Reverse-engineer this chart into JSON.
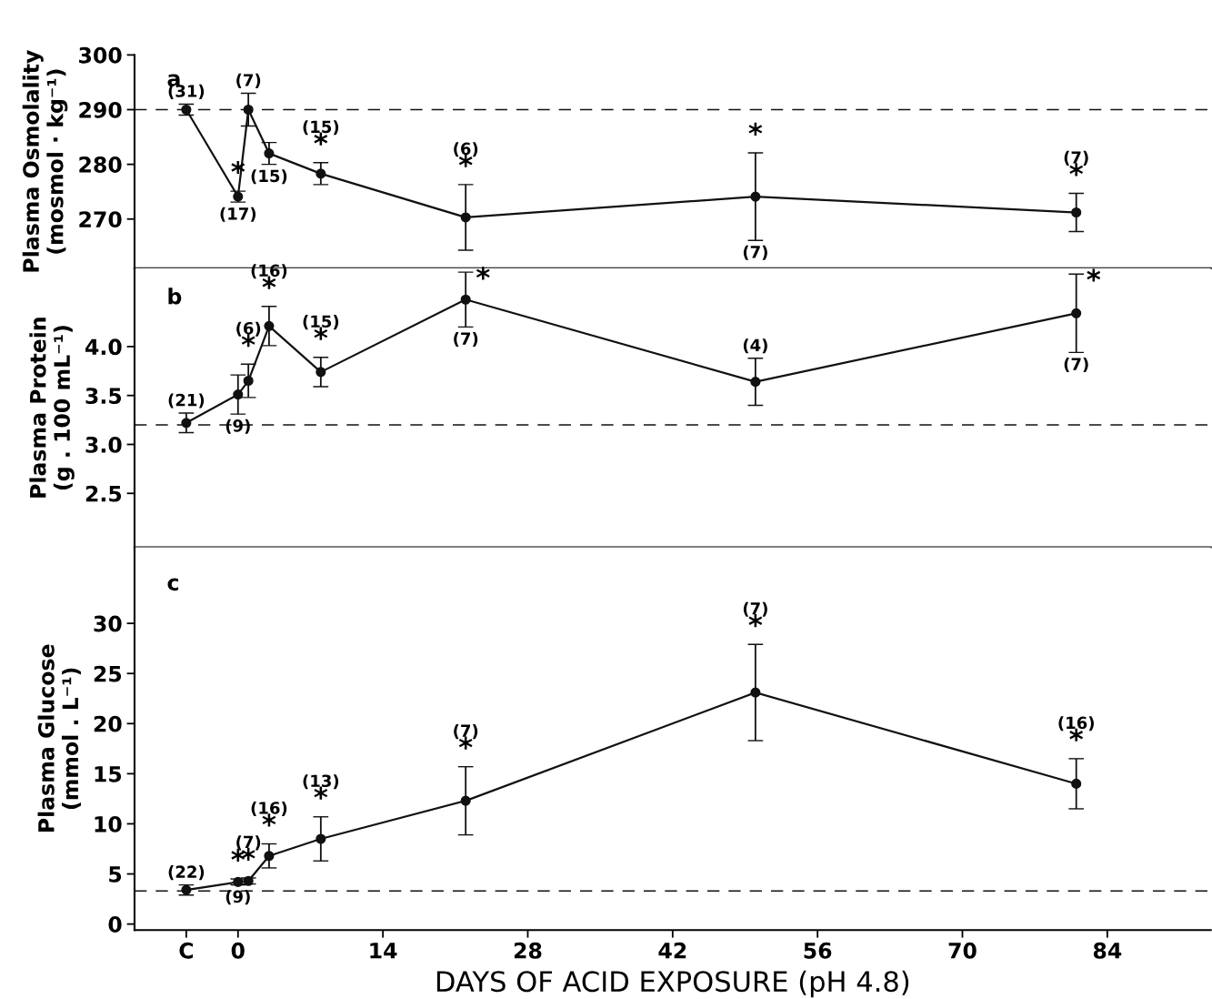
{
  "chart_data": [
    {
      "type": "line",
      "ylabel": "Plasma Osmolality\n(mosmol · kg⁻¹)",
      "x": [
        -5,
        0,
        1,
        3,
        8,
        22,
        50,
        81
      ],
      "series": [
        {
          "color": "#111111",
          "values": [
            290,
            274.1,
            290,
            282,
            278.3,
            270.3,
            274.1,
            271.2
          ],
          "errors": [
            1,
            1,
            3,
            2,
            2,
            6,
            8,
            3.5
          ]
        }
      ],
      "marker": "circle",
      "line_style": "solid",
      "xlim": [
        -10,
        94
      ],
      "ylim": [
        261,
        300
      ],
      "yticks": [
        270,
        280,
        290,
        300
      ],
      "tick_labels": "y",
      "grid": false,
      "legend": false,
      "ref_lines": [
        {
          "axis": "y",
          "value": 290,
          "line_style": "dashed"
        }
      ],
      "annotations": [
        "a",
        {
          "text": "(31)",
          "x": -5,
          "y": 291
        },
        {
          "text": "*",
          "x": 0,
          "y": 275.1
        },
        {
          "text": "(17)",
          "x": 0,
          "y": 273.1
        },
        {
          "text": "(7)",
          "x": 1,
          "y": 293
        },
        {
          "text": "(15)",
          "x": 3,
          "y": 280
        },
        {
          "text": "*",
          "x": 8,
          "y": 280.3
        },
        {
          "text": "(15)",
          "x": 8,
          "y": 280.3
        },
        {
          "text": "*",
          "x": 22,
          "y": 276.3
        },
        {
          "text": "(6)",
          "x": 22,
          "y": 276.3
        },
        {
          "text": "*",
          "x": 50,
          "y": 282.1
        },
        {
          "text": "(7)",
          "x": 50,
          "y": 266.1
        },
        {
          "text": "*",
          "x": 81,
          "y": 274.7
        },
        {
          "text": "(7)",
          "x": 81,
          "y": 274.7
        }
      ]
    },
    {
      "type": "line",
      "ylabel": "Plasma Protein\n(g . 100 mL⁻¹)",
      "x": [
        -5,
        0,
        1,
        3,
        8,
        22,
        50,
        81
      ],
      "series": [
        {
          "color": "#111111",
          "values": [
            3.22,
            3.51,
            3.65,
            4.21,
            3.74,
            4.48,
            3.64,
            4.34
          ],
          "errors": [
            0.1,
            0.2,
            0.17,
            0.2,
            0.15,
            0.28,
            0.24,
            0.4
          ]
        }
      ],
      "marker": "circle",
      "line_style": "solid",
      "xlim": [
        -10,
        94
      ],
      "ylim": [
        1.95,
        4.8
      ],
      "yticks": [
        {
          "value": 2.5,
          "label": "2.5"
        },
        {
          "value": 3.0,
          "label": "3.0"
        },
        {
          "value": 3.5,
          "label": "3.5"
        },
        {
          "value": 4.0,
          "label": "4.0"
        }
      ],
      "tick_labels": "y",
      "grid": false,
      "legend": false,
      "ref_lines": [
        {
          "axis": "y",
          "value": 3.2,
          "line_style": "dashed"
        }
      ],
      "annotations": [
        "b",
        {
          "text": "(21)",
          "x": -5,
          "y": 3.32
        },
        {
          "text": "(9)",
          "x": 0,
          "y": 3.31
        },
        {
          "text": "*",
          "x": 1,
          "y": 3.82
        },
        {
          "text": "(6)",
          "x": 1,
          "y": 3.82
        },
        {
          "text": "*",
          "x": 3,
          "y": 4.41
        },
        {
          "text": "(16)",
          "x": 3,
          "y": 4.41
        },
        {
          "text": "*",
          "x": 8,
          "y": 3.89
        },
        {
          "text": "(15)",
          "x": 8,
          "y": 3.89
        },
        {
          "text": "*",
          "x": 22,
          "y": 4.76
        },
        {
          "text": "(7)",
          "x": 22,
          "y": 4.2
        },
        {
          "text": "(4)",
          "x": 50,
          "y": 3.88
        },
        {
          "text": "*",
          "x": 81,
          "y": 4.74
        },
        {
          "text": "(7)",
          "x": 81,
          "y": 3.94
        }
      ]
    },
    {
      "type": "line",
      "ylabel": "Plasma Glucose\n(mmol . L⁻¹)",
      "xlabel": "DAYS OF ACID EXPOSURE (pH 4.8)",
      "x": [
        -5,
        0,
        1,
        3,
        8,
        22,
        50,
        81
      ],
      "series": [
        {
          "color": "#111111",
          "values": [
            3.4,
            4.2,
            4.3,
            6.8,
            8.5,
            12.3,
            23.1,
            14.0
          ],
          "errors": [
            0.5,
            0.3,
            0.3,
            1.2,
            2.2,
            3.4,
            4.8,
            2.5
          ]
        }
      ],
      "marker": "circle",
      "line_style": "solid",
      "xlim": [
        -10,
        94
      ],
      "xticks": [
        {
          "value": -5,
          "label": "C"
        },
        0,
        14,
        28,
        42,
        56,
        70,
        84
      ],
      "ylim": [
        -0.6,
        37.6
      ],
      "yticks": [
        0,
        5,
        10,
        15,
        20,
        25,
        30
      ],
      "grid": false,
      "legend": false,
      "ref_lines": [
        {
          "axis": "y",
          "value": 3.3,
          "line_style": "dashed"
        }
      ],
      "annotations": [
        "c",
        {
          "text": "(22)",
          "x": -5,
          "y": 3.9
        },
        {
          "text": "*",
          "x": 0,
          "y": 4.5
        },
        {
          "text": "(9)",
          "x": 0,
          "y": 3.9
        },
        {
          "text": "*",
          "x": 1,
          "y": 4.6
        },
        {
          "text": "(7)",
          "x": 1,
          "y": 4.6
        },
        {
          "text": "*",
          "x": 3,
          "y": 8.0
        },
        {
          "text": "(16)",
          "x": 3,
          "y": 8.0
        },
        {
          "text": "*",
          "x": 8,
          "y": 10.7
        },
        {
          "text": "(13)",
          "x": 8,
          "y": 10.7
        },
        {
          "text": "*",
          "x": 22,
          "y": 15.7
        },
        {
          "text": "(7)",
          "x": 22,
          "y": 15.7
        },
        {
          "text": "*",
          "x": 50,
          "y": 27.9
        },
        {
          "text": "(7)",
          "x": 50,
          "y": 27.9
        },
        {
          "text": "*",
          "x": 81,
          "y": 16.5
        },
        {
          "text": "(16)",
          "x": 81,
          "y": 16.5
        }
      ]
    }
  ]
}
